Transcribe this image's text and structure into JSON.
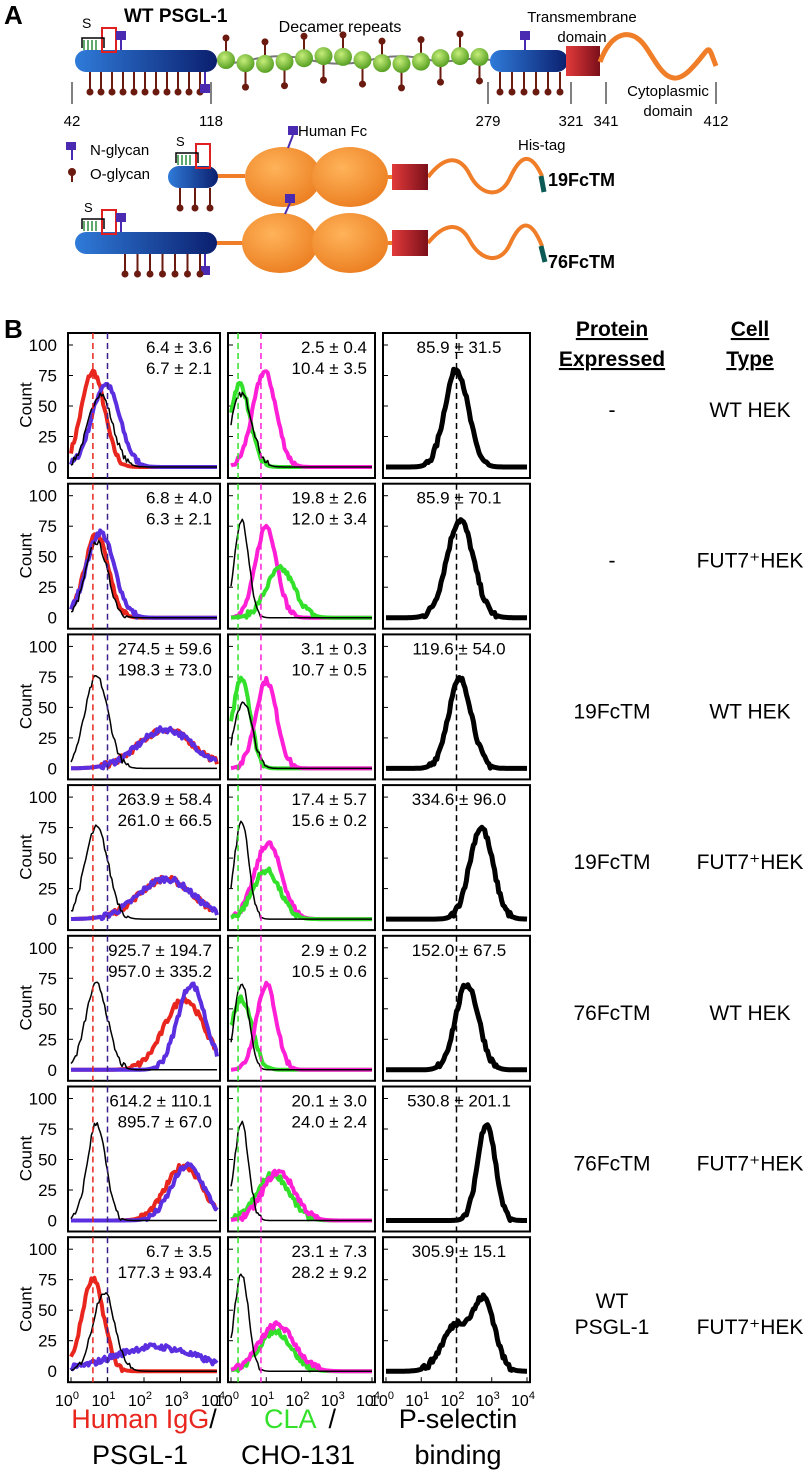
{
  "panel_a": {
    "label": "A",
    "title": "WT PSGL-1",
    "s_label": "S",
    "decamer": "Decamer repeats",
    "transmembrane": [
      "Transmembrane",
      "domain"
    ],
    "cytoplasmic": [
      "Cytoplasmic",
      "domain"
    ],
    "positions": [
      42,
      118,
      279,
      321,
      341,
      412
    ],
    "legend": [
      "N-glycan",
      "O-glycan"
    ],
    "human_fc": "Human Fc",
    "his_tag": "His-tag",
    "constructs": [
      "19FcTM",
      "76FcTM"
    ]
  },
  "panel_b": {
    "label": "B",
    "headers": {
      "protein": [
        "Protein",
        "Expressed"
      ],
      "cell": [
        "Cell",
        "Type"
      ]
    },
    "y_label": "Count",
    "yticks": [
      0,
      25,
      50,
      75,
      100
    ],
    "xtick_base": "10",
    "xtick_exponents": [
      "0",
      "1",
      "2",
      "3",
      "4"
    ],
    "x_labels": {
      "human_igg": "Human IgG",
      "slash": "/",
      "psgl1": "PSGL-1",
      "cla": "CLA",
      "cho131": "CHO-131",
      "pselectin": [
        "P-selectin",
        "binding"
      ]
    },
    "rows": [
      {
        "igg": "6.4 ± 3.6",
        "psgl1": "6.7 ± 2.1",
        "cla": "2.5 ± 0.4",
        "cho131": "10.4 ± 3.5",
        "pselectin": "85.9 ± 31.5",
        "protein": [
          "-"
        ],
        "cell": "WT HEK"
      },
      {
        "igg": "6.8 ± 4.0",
        "psgl1": "6.3 ± 2.1",
        "cla": "19.8 ± 2.6",
        "cho131": "12.0 ± 3.4",
        "pselectin": "85.9 ± 70.1",
        "protein": [
          "-"
        ],
        "cell": "FUT7⁺HEK"
      },
      {
        "igg": "274.5 ± 59.6",
        "psgl1": "198.3 ± 73.0",
        "cla": "3.1 ± 0.3",
        "cho131": "10.7 ± 0.5",
        "pselectin": "119.6 ± 54.0",
        "protein": [
          "19FcTM"
        ],
        "cell": "WT HEK"
      },
      {
        "igg": "263.9 ± 58.4",
        "psgl1": "261.0 ± 66.5",
        "cla": "17.4 ± 5.7",
        "cho131": "15.6 ± 0.2",
        "pselectin": "334.6 ± 96.0",
        "protein": [
          "19FcTM"
        ],
        "cell": "FUT7⁺HEK"
      },
      {
        "igg": "925.7 ± 194.7",
        "psgl1": "957.0 ± 335.2",
        "cla": "2.9 ± 0.2",
        "cho131": "10.5 ± 0.6",
        "pselectin": "152.0 ± 67.5",
        "protein": [
          "76FcTM"
        ],
        "cell": "WT HEK"
      },
      {
        "igg": "614.2 ± 110.1",
        "psgl1": "895.7 ± 67.0",
        "cla": "20.1 ± 3.0",
        "cho131": "24.0 ± 2.4",
        "pselectin": "530.8 ± 201.1",
        "protein": [
          "76FcTM"
        ],
        "cell": "FUT7⁺HEK"
      },
      {
        "igg": "6.7 ± 3.5",
        "psgl1": "177.3 ± 93.4",
        "cla": "23.1 ± 7.3",
        "cho131": "28.2 ± 9.2",
        "pselectin": "305.9 ± 15.1",
        "protein": [
          "WT",
          "PSGL-1"
        ],
        "cell": "FUT7⁺HEK"
      }
    ]
  }
}
